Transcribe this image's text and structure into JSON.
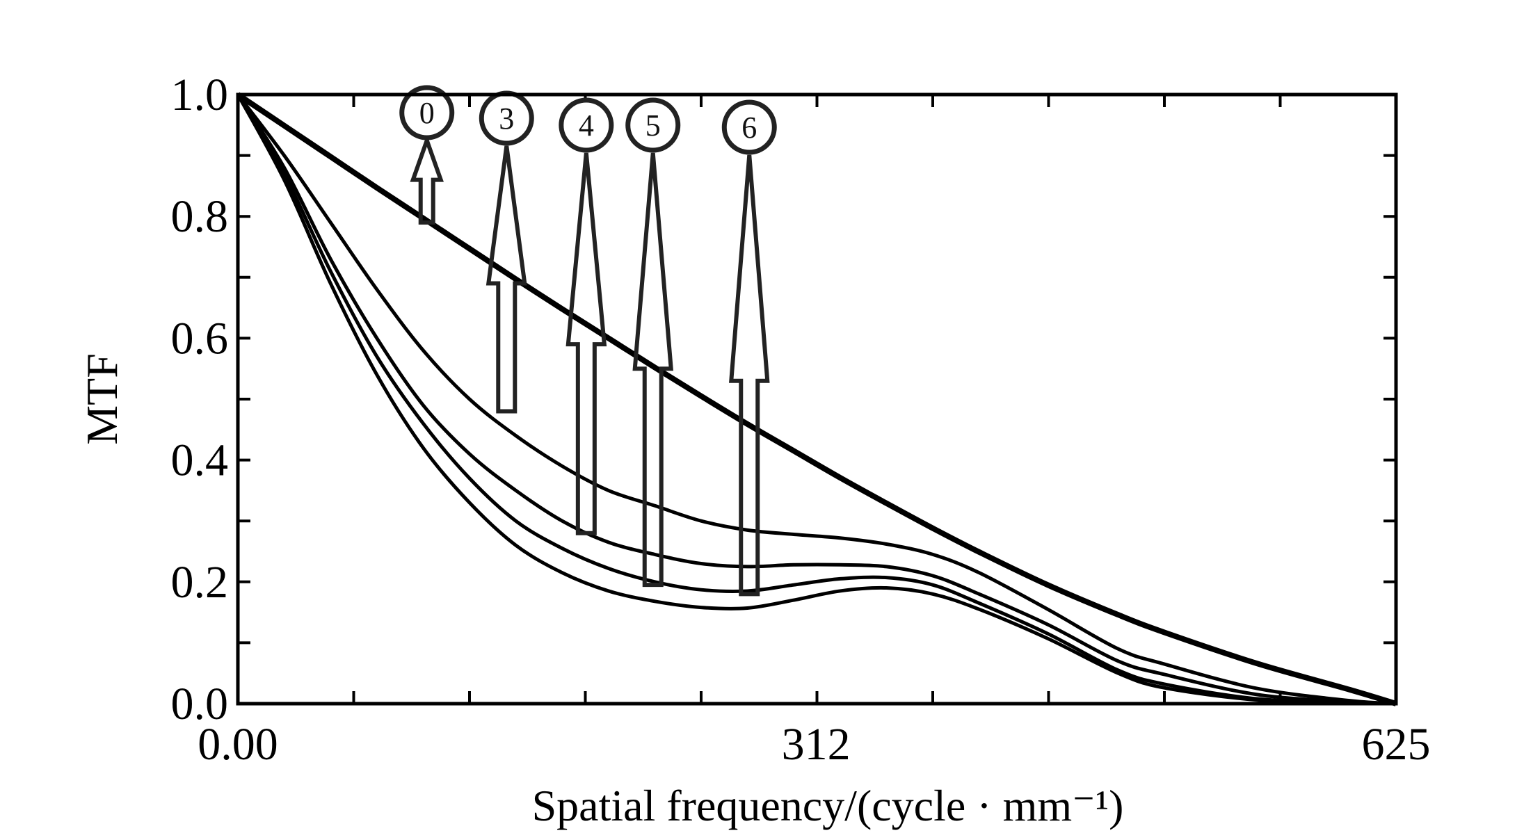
{
  "chart_data": {
    "type": "line",
    "title": "",
    "xlabel": "Spatial frequency/(cycle · mm⁻¹)",
    "ylabel": "MTF",
    "xlim": [
      0,
      625
    ],
    "ylim": [
      0,
      1.0
    ],
    "grid": false,
    "x_tick_labels": [
      {
        "value": 0,
        "label": "0.00"
      },
      {
        "value": 312,
        "label": "312"
      },
      {
        "value": 625,
        "label": "625"
      }
    ],
    "x_minor_step": 62.5,
    "y_tick_labels": [
      {
        "value": 0.0,
        "label": "0.0"
      },
      {
        "value": 0.2,
        "label": "0.2"
      },
      {
        "value": 0.4,
        "label": "0.4"
      },
      {
        "value": 0.6,
        "label": "0.6"
      },
      {
        "value": 0.8,
        "label": "0.8"
      },
      {
        "value": 1.0,
        "label": "1.0"
      }
    ],
    "y_minor_step": 0.1,
    "x": [
      0,
      25,
      50,
      75,
      100,
      125,
      150,
      175,
      200,
      225,
      250,
      275,
      300,
      325,
      350,
      375,
      400,
      437,
      475,
      500,
      550,
      600,
      625
    ],
    "series": [
      {
        "name": "0",
        "values": [
          1,
          0.949,
          0.898,
          0.847,
          0.797,
          0.747,
          0.697,
          0.648,
          0.6,
          0.552,
          0.505,
          0.459,
          0.415,
          0.371,
          0.329,
          0.288,
          0.249,
          0.195,
          0.146,
          0.117,
          0.066,
          0.023,
          0
        ]
      },
      {
        "name": "3",
        "values": [
          1,
          0.9,
          0.79,
          0.68,
          0.58,
          0.5,
          0.44,
          0.39,
          0.35,
          0.325,
          0.3,
          0.285,
          0.278,
          0.272,
          0.262,
          0.245,
          0.215,
          0.155,
          0.09,
          0.065,
          0.025,
          0.005,
          0
        ]
      },
      {
        "name": "4",
        "values": [
          1,
          0.88,
          0.73,
          0.6,
          0.49,
          0.41,
          0.35,
          0.3,
          0.265,
          0.245,
          0.23,
          0.225,
          0.228,
          0.228,
          0.225,
          0.21,
          0.18,
          0.13,
          0.07,
          0.048,
          0.015,
          0.003,
          0
        ]
      },
      {
        "name": "5",
        "values": [
          1,
          0.87,
          0.71,
          0.57,
          0.46,
          0.37,
          0.3,
          0.255,
          0.222,
          0.2,
          0.187,
          0.185,
          0.195,
          0.205,
          0.207,
          0.195,
          0.165,
          0.115,
          0.055,
          0.032,
          0.008,
          0.002,
          0
        ]
      },
      {
        "name": "6",
        "values": [
          1,
          0.86,
          0.69,
          0.54,
          0.42,
          0.33,
          0.26,
          0.215,
          0.185,
          0.168,
          0.158,
          0.157,
          0.17,
          0.185,
          0.19,
          0.18,
          0.155,
          0.107,
          0.05,
          0.026,
          0.006,
          0.001,
          0
        ]
      }
    ],
    "annotations": [
      {
        "label": "0",
        "x": 102,
        "tail_y": 0.79,
        "head_y": 0.86
      },
      {
        "label": "3",
        "x": 145,
        "tail_y": 0.48,
        "head_y": 0.69
      },
      {
        "label": "4",
        "x": 188,
        "tail_y": 0.28,
        "head_y": 0.59
      },
      {
        "label": "5",
        "x": 224,
        "tail_y": 0.195,
        "head_y": 0.55
      },
      {
        "label": "6",
        "x": 276,
        "tail_y": 0.18,
        "head_y": 0.53
      }
    ]
  }
}
